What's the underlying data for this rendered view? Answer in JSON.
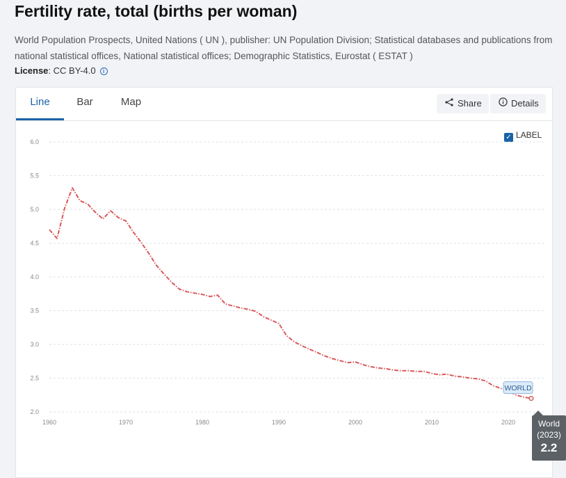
{
  "page": {
    "title": "Fertility rate, total (births per woman)",
    "source": "World Population Prospects, United Nations ( UN ), publisher: UN Population Division; Statistical databases and publications from national statistical offices, National statistical offices; Demographic Statistics, Eurostat ( ESTAT )",
    "license_label": "License",
    "license_value": ": CC BY-4.0",
    "license_info_icon": "info-icon"
  },
  "tabs": [
    {
      "label": "Line",
      "active": true
    },
    {
      "label": "Bar",
      "active": false
    },
    {
      "label": "Map",
      "active": false
    }
  ],
  "toolbar": {
    "share_label": "Share",
    "share_icon": "share-icon",
    "details_label": "Details",
    "details_icon": "info-icon"
  },
  "label_toggle": {
    "text": "LABEL",
    "checked": true,
    "checkmark": "✓"
  },
  "tooltip": {
    "name": "World",
    "year": "(2023)",
    "value": "2.2"
  },
  "colors": {
    "line": "#d9595b",
    "accent": "#1a62a8",
    "grid": "#dfe2e6",
    "tick": "#888888"
  },
  "chart_data": {
    "type": "line",
    "title": "Fertility rate, total (births per woman)",
    "xlabel": "",
    "ylabel": "",
    "xlim": [
      1960,
      2023
    ],
    "ylim": [
      2.0,
      6.0
    ],
    "y_ticks": [
      "6.0",
      "5.5",
      "5.0",
      "4.5",
      "4.0",
      "3.5",
      "3.0",
      "2.5",
      "2.0"
    ],
    "x_ticks": [
      "1960",
      "1970",
      "1980",
      "1990",
      "2000",
      "2010",
      "2020"
    ],
    "grid": true,
    "series": [
      {
        "name": "World",
        "end_label": "WORLD",
        "x": [
          1960,
          1961,
          1962,
          1963,
          1964,
          1965,
          1966,
          1967,
          1968,
          1969,
          1970,
          1971,
          1972,
          1973,
          1974,
          1975,
          1976,
          1977,
          1978,
          1979,
          1980,
          1981,
          1982,
          1983,
          1984,
          1985,
          1986,
          1987,
          1988,
          1989,
          1990,
          1991,
          1992,
          1993,
          1994,
          1995,
          1996,
          1997,
          1998,
          1999,
          2000,
          2001,
          2002,
          2003,
          2004,
          2005,
          2006,
          2007,
          2008,
          2009,
          2010,
          2011,
          2012,
          2013,
          2014,
          2015,
          2016,
          2017,
          2018,
          2019,
          2020,
          2021,
          2022,
          2023
        ],
        "values": [
          4.7,
          4.57,
          5.02,
          5.32,
          5.13,
          5.08,
          4.96,
          4.86,
          4.98,
          4.88,
          4.83,
          4.66,
          4.51,
          4.35,
          4.17,
          4.04,
          3.92,
          3.82,
          3.78,
          3.76,
          3.74,
          3.71,
          3.73,
          3.6,
          3.57,
          3.54,
          3.52,
          3.49,
          3.41,
          3.36,
          3.31,
          3.13,
          3.04,
          2.98,
          2.93,
          2.88,
          2.83,
          2.79,
          2.76,
          2.73,
          2.74,
          2.7,
          2.67,
          2.65,
          2.64,
          2.62,
          2.61,
          2.61,
          2.6,
          2.6,
          2.57,
          2.55,
          2.56,
          2.53,
          2.52,
          2.5,
          2.49,
          2.46,
          2.39,
          2.35,
          2.31,
          2.25,
          2.22,
          2.2
        ]
      }
    ]
  }
}
